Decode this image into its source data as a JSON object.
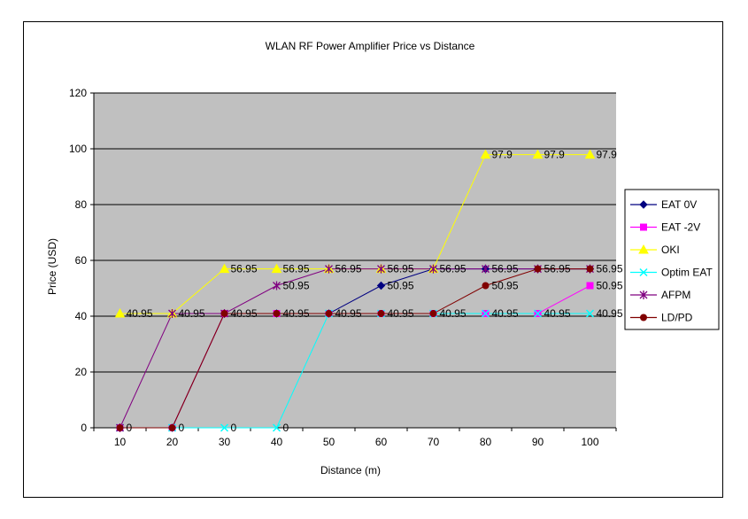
{
  "chart_data": {
    "type": "line",
    "title": "WLAN RF Power Amplifier Price vs Distance",
    "xlabel": "Distance (m)",
    "ylabel": "Price (USD)",
    "categories": [
      "10",
      "20",
      "30",
      "40",
      "50",
      "60",
      "70",
      "80",
      "90",
      "100"
    ],
    "ylim": [
      0,
      120
    ],
    "yticks": [
      "0",
      "20",
      "40",
      "60",
      "80",
      "100",
      "120"
    ],
    "grid": true,
    "legend": "right",
    "plot_bg": "#c0c0c0",
    "series": [
      {
        "name": "EAT 0V",
        "color": "#000080",
        "marker": "diamond",
        "values": [
          0,
          0,
          40.95,
          40.95,
          40.95,
          50.95,
          56.95,
          56.95,
          56.95,
          56.95
        ]
      },
      {
        "name": "EAT -2V",
        "color": "#ff00ff",
        "marker": "square",
        "values": [
          0,
          0,
          40.95,
          40.95,
          40.95,
          40.95,
          40.95,
          40.95,
          40.95,
          50.95
        ]
      },
      {
        "name": "OKI",
        "color": "#ffff00",
        "marker": "triangle",
        "values": [
          40.95,
          40.95,
          56.95,
          56.95,
          56.95,
          56.95,
          56.95,
          97.9,
          97.9,
          97.9
        ]
      },
      {
        "name": "Optim EAT",
        "color": "#00ffff",
        "marker": "x",
        "values": [
          0,
          0,
          0,
          0,
          40.95,
          40.95,
          40.95,
          40.95,
          40.95,
          40.95
        ]
      },
      {
        "name": "AFPM",
        "color": "#800080",
        "marker": "star",
        "values": [
          0,
          40.95,
          40.95,
          50.95,
          56.95,
          56.95,
          56.95,
          56.95,
          56.95,
          56.95
        ]
      },
      {
        "name": "LD/PD",
        "color": "#800000",
        "marker": "circle",
        "values": [
          0,
          0,
          40.95,
          40.95,
          40.95,
          40.95,
          40.95,
          50.95,
          56.95,
          56.95
        ]
      }
    ],
    "data_labels": [
      {
        "series": "OKI",
        "index": 0,
        "text": "40.95"
      },
      {
        "series": "OKI",
        "index": 1,
        "text": "40.95"
      },
      {
        "series": "OKI",
        "index": 2,
        "text": "56.95"
      },
      {
        "series": "OKI",
        "index": 3,
        "text": "56.95"
      },
      {
        "series": "OKI",
        "index": 4,
        "text": "56.95"
      },
      {
        "series": "OKI",
        "index": 5,
        "text": "56.95"
      },
      {
        "series": "OKI",
        "index": 6,
        "text": "56.95"
      },
      {
        "series": "OKI",
        "index": 7,
        "text": "97.9"
      },
      {
        "series": "OKI",
        "index": 8,
        "text": "97.9"
      },
      {
        "series": "OKI",
        "index": 9,
        "text": "97.9"
      },
      {
        "series": "EAT 0V",
        "index": 5,
        "text": "50.95"
      },
      {
        "series": "AFPM",
        "index": 3,
        "text": "50.95"
      },
      {
        "series": "LD/PD",
        "index": 7,
        "text": "50.95"
      },
      {
        "series": "EAT 0V",
        "index": 7,
        "text": "56.95"
      },
      {
        "series": "EAT 0V",
        "index": 8,
        "text": "56.95"
      },
      {
        "series": "EAT 0V",
        "index": 9,
        "text": "56.95"
      },
      {
        "series": "EAT -2V",
        "index": 9,
        "text": "50.95"
      },
      {
        "series": "LD/PD",
        "index": 2,
        "text": "40.95"
      },
      {
        "series": "LD/PD",
        "index": 3,
        "text": "40.95"
      },
      {
        "series": "LD/PD",
        "index": 4,
        "text": "40.95"
      },
      {
        "series": "LD/PD",
        "index": 5,
        "text": "40.95"
      },
      {
        "series": "LD/PD",
        "index": 6,
        "text": "40.95"
      },
      {
        "series": "EAT -2V",
        "index": 7,
        "text": "40.95"
      },
      {
        "series": "EAT -2V",
        "index": 8,
        "text": "40.95"
      },
      {
        "series": "Optim EAT",
        "index": 9,
        "text": "40.95"
      },
      {
        "series": "LD/PD",
        "index": 0,
        "text": "0"
      },
      {
        "series": "LD/PD",
        "index": 1,
        "text": "0"
      },
      {
        "series": "Optim EAT",
        "index": 2,
        "text": "0"
      },
      {
        "series": "Optim EAT",
        "index": 3,
        "text": "0"
      }
    ]
  }
}
